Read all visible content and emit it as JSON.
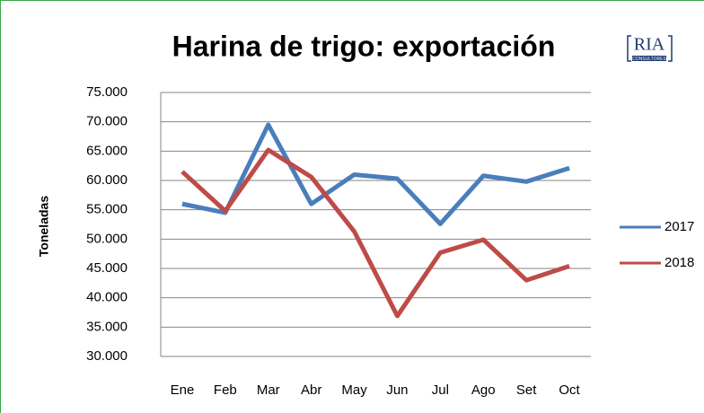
{
  "chart_data": {
    "type": "line",
    "title": "Harina de trigo: exportación",
    "ylabel": "Toneladas",
    "logo": {
      "name": "RIA",
      "subtitle": "CONSULTORES"
    },
    "categories": [
      "Ene",
      "Feb",
      "Mar",
      "Abr",
      "May",
      "Jun",
      "Jul",
      "Ago",
      "Set",
      "Oct"
    ],
    "series": [
      {
        "name": "2017",
        "color": "#4a7ebb",
        "values": [
          56000,
          54500,
          69500,
          56000,
          61000,
          60300,
          52600,
          60800,
          59800,
          62100
        ]
      },
      {
        "name": "2018",
        "color": "#be4b48",
        "values": [
          61500,
          54800,
          65200,
          60600,
          51300,
          36900,
          47700,
          49900,
          43000,
          45400
        ]
      }
    ],
    "ylim": [
      30000,
      75000
    ],
    "yticks": [
      {
        "value": 30000,
        "label": "30.000"
      },
      {
        "value": 35000,
        "label": "35.000"
      },
      {
        "value": 40000,
        "label": "40.000"
      },
      {
        "value": 45000,
        "label": "45.000"
      },
      {
        "value": 50000,
        "label": "50.000"
      },
      {
        "value": 55000,
        "label": "55.000"
      },
      {
        "value": 60000,
        "label": "60.000"
      },
      {
        "value": 65000,
        "label": "65.000"
      },
      {
        "value": 70000,
        "label": "70.000"
      },
      {
        "value": 75000,
        "label": "75.000"
      }
    ],
    "grid": true,
    "legend": "right"
  }
}
